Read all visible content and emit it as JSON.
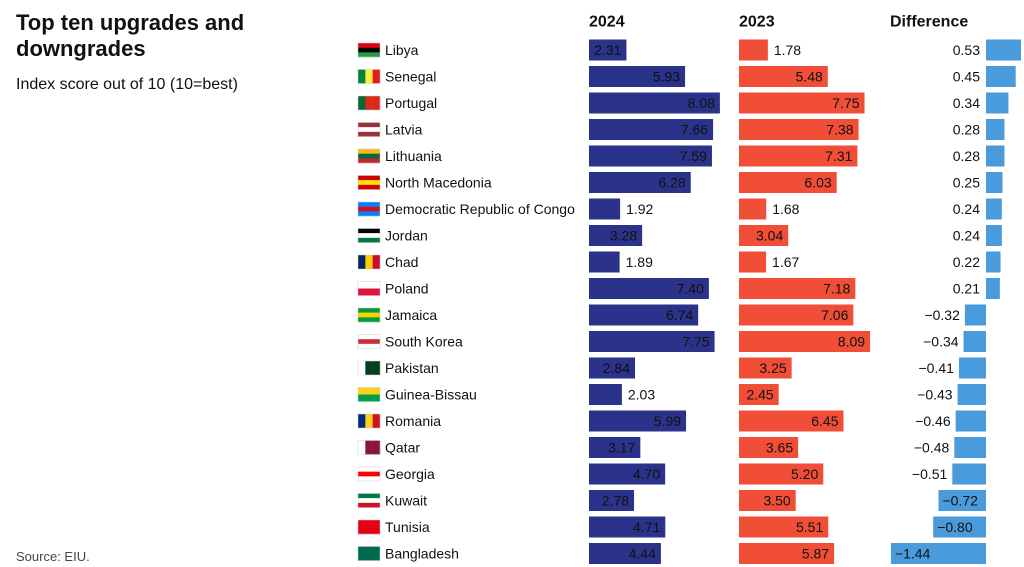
{
  "chart_data": {
    "type": "bar",
    "title": "Top ten upgrades and downgrades",
    "subtitle": "Index score out of 10 (10=best)",
    "source": "Source: EIU.",
    "categories": [
      "Libya",
      "Senegal",
      "Portugal",
      "Latvia",
      "Lithuania",
      "North Macedonia",
      "Democratic Republic of Congo",
      "Jordan",
      "Chad",
      "Poland",
      "Jamaica",
      "South Korea",
      "Pakistan",
      "Guinea-Bissau",
      "Romania",
      "Qatar",
      "Georgia",
      "Kuwait",
      "Tunisia",
      "Bangladesh"
    ],
    "series": [
      {
        "name": "2024",
        "color": "#2a3389",
        "values": [
          2.31,
          5.93,
          8.08,
          7.66,
          7.59,
          6.28,
          1.92,
          3.28,
          1.89,
          7.4,
          6.74,
          7.75,
          2.84,
          2.03,
          5.99,
          3.17,
          4.7,
          2.78,
          4.71,
          4.44
        ],
        "value_labels": [
          "2.31",
          "5.93",
          "8.08",
          "7.66",
          "7.59",
          "6.28",
          "1.92",
          "3.28",
          "1.89",
          "7.40",
          "6.74",
          "7.75",
          "2.84",
          "2.03",
          "5.99",
          "3.17",
          "4.70",
          "2.78",
          "4.71",
          "4.44"
        ]
      },
      {
        "name": "2023",
        "color": "#f04e37",
        "values": [
          1.78,
          5.48,
          7.75,
          7.38,
          7.31,
          6.03,
          1.68,
          3.04,
          1.67,
          7.18,
          7.06,
          8.09,
          3.25,
          2.45,
          6.45,
          3.65,
          5.2,
          3.5,
          5.51,
          5.87
        ],
        "value_labels": [
          "1.78",
          "5.48",
          "7.75",
          "7.38",
          "7.31",
          "6.03",
          "1.68",
          "3.04",
          "1.67",
          "7.18",
          "7.06",
          "8.09",
          "3.25",
          "2.45",
          "6.45",
          "3.65",
          "5.20",
          "3.50",
          "5.51",
          "5.87"
        ]
      },
      {
        "name": "Difference",
        "color": "#4a9bdb",
        "values": [
          0.53,
          0.45,
          0.34,
          0.28,
          0.28,
          0.25,
          0.24,
          0.24,
          0.22,
          0.21,
          -0.32,
          -0.34,
          -0.41,
          -0.43,
          -0.46,
          -0.48,
          -0.51,
          -0.72,
          -0.8,
          -1.44
        ],
        "value_labels": [
          "0.53",
          "0.45",
          "0.34",
          "0.28",
          "0.28",
          "0.25",
          "0.24",
          "0.24",
          "0.22",
          "0.21",
          "−0.32",
          "−0.34",
          "−0.41",
          "−0.43",
          "−0.46",
          "−0.48",
          "−0.51",
          "−0.72",
          "−0.80",
          "−1.44"
        ]
      }
    ]
  }
}
